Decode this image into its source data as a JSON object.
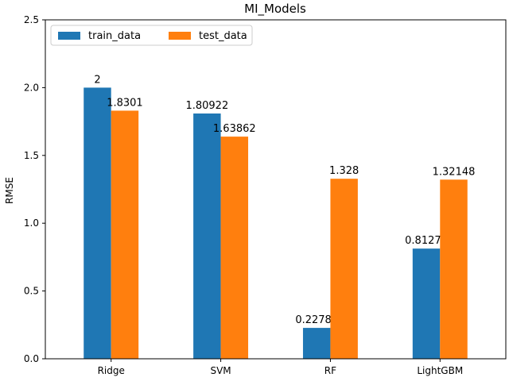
{
  "chart_data": {
    "type": "bar",
    "title": "MI_Models",
    "xlabel": "",
    "ylabel": "RMSE",
    "categories": [
      "Ridge",
      "SVM",
      "RF",
      "LightGBM"
    ],
    "series": [
      {
        "name": "train_data",
        "color": "#1f77b4",
        "values": [
          2,
          1.80922,
          0.22784,
          0.81275
        ],
        "labels": [
          "2",
          "1.80922",
          "0.22784",
          "0.81275"
        ]
      },
      {
        "name": "test_data",
        "color": "#ff7f0e",
        "values": [
          1.8301,
          1.63862,
          1.328,
          1.32148
        ],
        "labels": [
          "1.8301",
          "1.63862",
          "1.328",
          "1.32148"
        ]
      }
    ],
    "ylim": [
      0,
      2.5
    ],
    "yticks": [
      "0.0",
      "0.5",
      "1.0",
      "1.5",
      "2.0",
      "2.5"
    ],
    "grid": false,
    "legend_position": "top-left"
  }
}
